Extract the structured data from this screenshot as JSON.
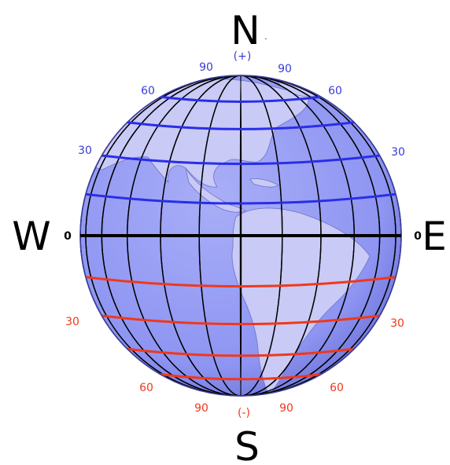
{
  "compass": {
    "north": "N",
    "south": "S",
    "west": "W",
    "east": "E"
  },
  "hemisphere": {
    "north_sign": "(+)",
    "south_sign": "(-)"
  },
  "equator_label": "0",
  "colors": {
    "ocean": "#8e95f2",
    "ocean_edge": "#4a4fb8",
    "land": "#c9caf5",
    "meridian": "#000000",
    "equator": "#000000",
    "north_parallel": "#2a2ee8",
    "south_parallel": "#f0381c",
    "north_text": "#3a3ad8",
    "south_text": "#f0381c"
  },
  "north_parallels": [
    30,
    60
  ],
  "south_parallels": [
    30,
    60
  ],
  "north_labels": [
    "90",
    "90",
    "60",
    "60",
    "30",
    "30"
  ],
  "south_labels": [
    "30",
    "30",
    "60",
    "60",
    "90",
    "90"
  ],
  "meridian_count": 13
}
